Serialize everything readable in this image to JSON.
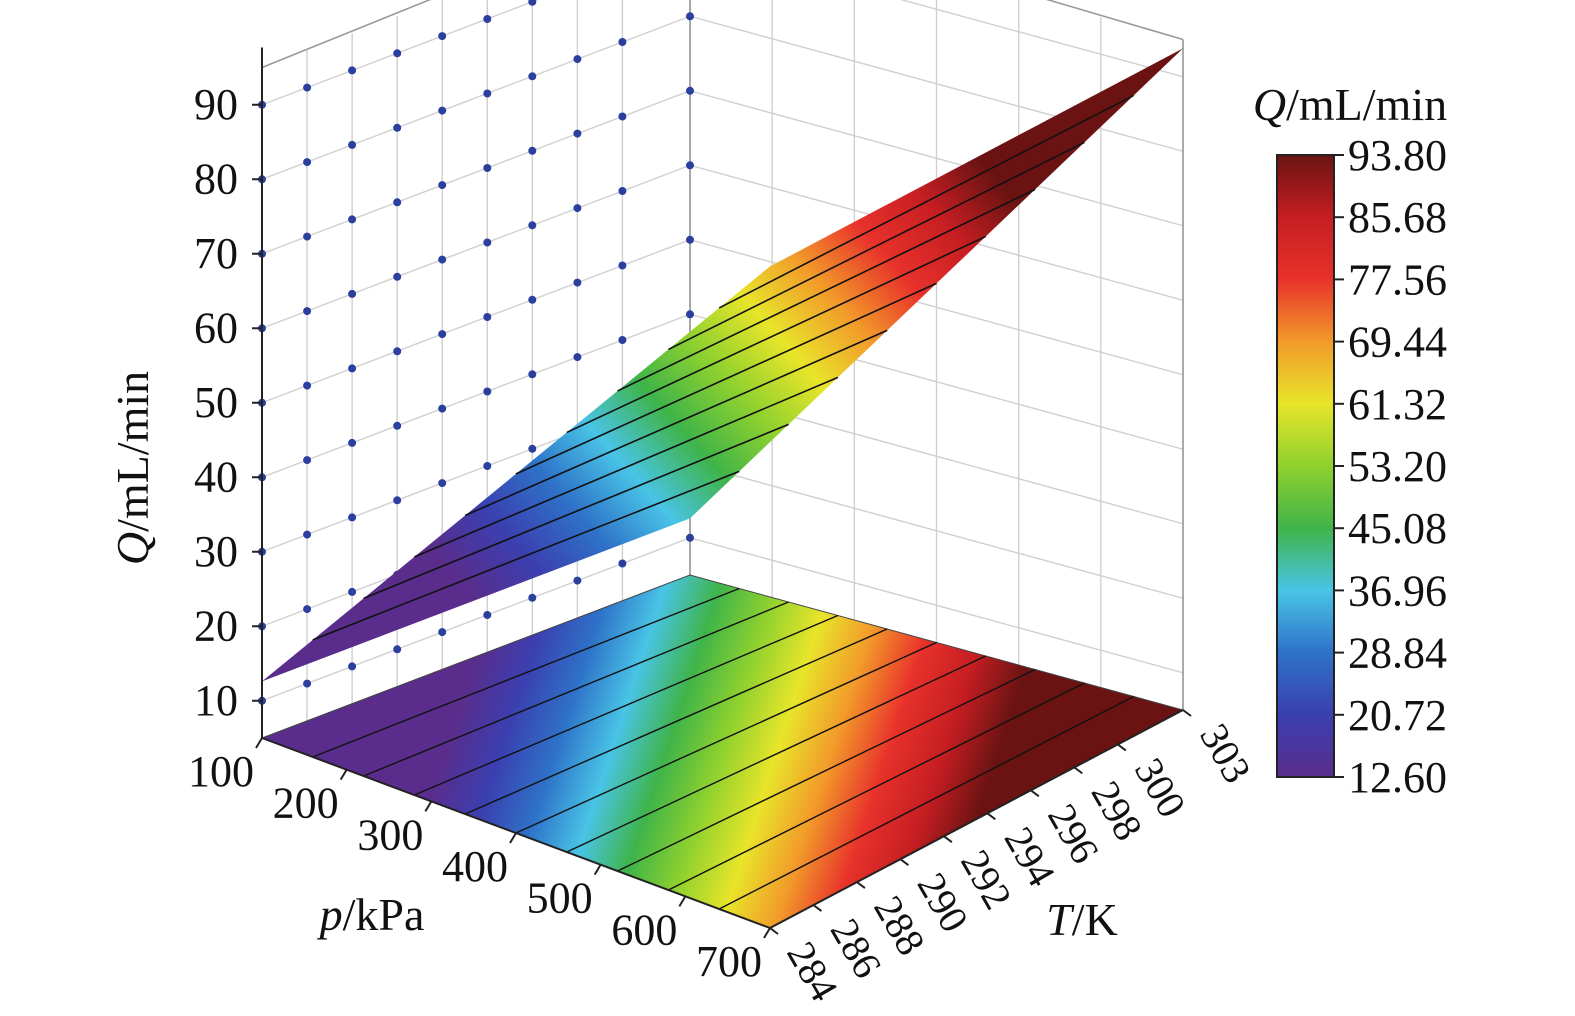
{
  "chart_data": {
    "type": "surface3d",
    "title": "",
    "z_axis": {
      "label_var": "Q",
      "label_unit": "/mL/min",
      "ticks": [
        "10",
        "20",
        "30",
        "40",
        "50",
        "60",
        "70",
        "80",
        "90"
      ],
      "range": [
        5,
        95
      ]
    },
    "p_axis": {
      "label_var": "p",
      "label_unit": "/kPa",
      "ticks": [
        "100",
        "200",
        "300",
        "400",
        "500",
        "600",
        "700"
      ],
      "range": [
        100,
        700
      ]
    },
    "t_axis": {
      "label_var": "T",
      "label_unit": "/K",
      "ticks": [
        "284",
        "286",
        "288",
        "290",
        "292",
        "294",
        "296",
        "298",
        "300",
        "303"
      ],
      "range": [
        284,
        303
      ]
    },
    "surface": {
      "q_at_p_min": 12.6,
      "q_at_p_max": 93.8,
      "depends_on": "p",
      "contour_levels": [
        20.72,
        28.84,
        36.96,
        45.08,
        53.2,
        61.32,
        69.44,
        77.56,
        85.68
      ]
    },
    "colorbar": {
      "title_var": "Q",
      "title_unit": "/mL/min",
      "labels": [
        "93.80",
        "85.68",
        "77.56",
        "69.44",
        "61.32",
        "53.20",
        "45.08",
        "36.96",
        "28.84",
        "20.72",
        "12.60"
      ],
      "min": 12.6,
      "max": 93.8,
      "colors": [
        "#5a2d8c",
        "#3b3fb0",
        "#2e72c8",
        "#49c4e6",
        "#3fb449",
        "#8fd12e",
        "#e8e52a",
        "#f29a2a",
        "#e8322b",
        "#c61e22",
        "#6b1313"
      ]
    },
    "wall_points": {
      "color": "#2b3f9e",
      "left_wall_levels": [
        10,
        20,
        30,
        40,
        50,
        60,
        70,
        80,
        90
      ]
    },
    "grid": true
  }
}
